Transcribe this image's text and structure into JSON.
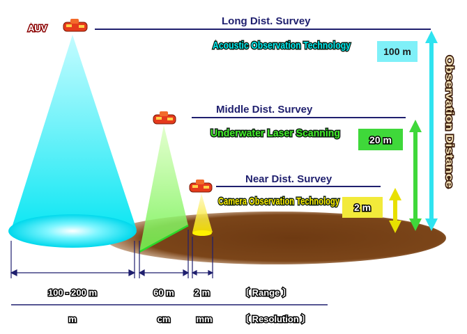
{
  "auv_label": "AUV",
  "surveys": [
    {
      "title": "Long Dist. Survey",
      "technology": "Acoustic Observation Technology",
      "distance": "100 m",
      "tech_color": "#00e8f0",
      "box_color": "#7ff0f8",
      "arrow_color": "#2fe3f0"
    },
    {
      "title": "Middle Dist. Survey",
      "technology": "Underwater Laser Scanning",
      "distance": "20 m",
      "tech_color": "#44ee2a",
      "box_color": "#3fd83a",
      "arrow_color": "#3fd83a"
    },
    {
      "title": "Near Dist. Survey",
      "technology": "Camera Observation Technology",
      "distance": "2 m",
      "tech_color": "#ffee00",
      "box_color": "#e8e000",
      "arrow_color": "#e8e000"
    }
  ],
  "vertical_label": "Observation Distance",
  "ranges": [
    "100 - 200 m",
    "60 m",
    "2 m"
  ],
  "range_label": "〔 Range 〕",
  "resolutions": [
    "m",
    "cm",
    "mm"
  ],
  "resolution_label": "〔 Resolution 〕",
  "colors": {
    "seabed": "#7a4418",
    "survey_text": "#1f1f6e",
    "line": "#1f1f6e",
    "auv": "#e53a1c"
  }
}
